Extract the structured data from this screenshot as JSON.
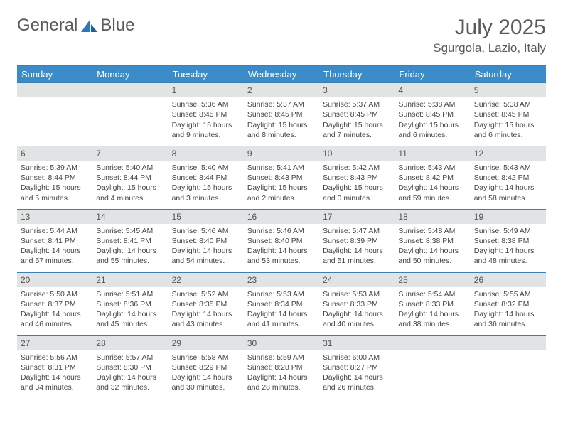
{
  "brand": {
    "part1": "General",
    "part2": "Blue"
  },
  "title": "July 2025",
  "location": "Sgurgola, Lazio, Italy",
  "day_headers": [
    "Sunday",
    "Monday",
    "Tuesday",
    "Wednesday",
    "Thursday",
    "Friday",
    "Saturday"
  ],
  "colors": {
    "header_bg": "#3b8bc9",
    "border": "#3a7fb5",
    "daynum_bg": "#e1e3e5",
    "logo_accent": "#2f77b7"
  },
  "weeks": [
    [
      {
        "num": "",
        "lines": []
      },
      {
        "num": "",
        "lines": []
      },
      {
        "num": "1",
        "lines": [
          "Sunrise: 5:36 AM",
          "Sunset: 8:45 PM",
          "Daylight: 15 hours",
          "and 9 minutes."
        ]
      },
      {
        "num": "2",
        "lines": [
          "Sunrise: 5:37 AM",
          "Sunset: 8:45 PM",
          "Daylight: 15 hours",
          "and 8 minutes."
        ]
      },
      {
        "num": "3",
        "lines": [
          "Sunrise: 5:37 AM",
          "Sunset: 8:45 PM",
          "Daylight: 15 hours",
          "and 7 minutes."
        ]
      },
      {
        "num": "4",
        "lines": [
          "Sunrise: 5:38 AM",
          "Sunset: 8:45 PM",
          "Daylight: 15 hours",
          "and 6 minutes."
        ]
      },
      {
        "num": "5",
        "lines": [
          "Sunrise: 5:38 AM",
          "Sunset: 8:45 PM",
          "Daylight: 15 hours",
          "and 6 minutes."
        ]
      }
    ],
    [
      {
        "num": "6",
        "lines": [
          "Sunrise: 5:39 AM",
          "Sunset: 8:44 PM",
          "Daylight: 15 hours",
          "and 5 minutes."
        ]
      },
      {
        "num": "7",
        "lines": [
          "Sunrise: 5:40 AM",
          "Sunset: 8:44 PM",
          "Daylight: 15 hours",
          "and 4 minutes."
        ]
      },
      {
        "num": "8",
        "lines": [
          "Sunrise: 5:40 AM",
          "Sunset: 8:44 PM",
          "Daylight: 15 hours",
          "and 3 minutes."
        ]
      },
      {
        "num": "9",
        "lines": [
          "Sunrise: 5:41 AM",
          "Sunset: 8:43 PM",
          "Daylight: 15 hours",
          "and 2 minutes."
        ]
      },
      {
        "num": "10",
        "lines": [
          "Sunrise: 5:42 AM",
          "Sunset: 8:43 PM",
          "Daylight: 15 hours",
          "and 0 minutes."
        ]
      },
      {
        "num": "11",
        "lines": [
          "Sunrise: 5:43 AM",
          "Sunset: 8:42 PM",
          "Daylight: 14 hours",
          "and 59 minutes."
        ]
      },
      {
        "num": "12",
        "lines": [
          "Sunrise: 5:43 AM",
          "Sunset: 8:42 PM",
          "Daylight: 14 hours",
          "and 58 minutes."
        ]
      }
    ],
    [
      {
        "num": "13",
        "lines": [
          "Sunrise: 5:44 AM",
          "Sunset: 8:41 PM",
          "Daylight: 14 hours",
          "and 57 minutes."
        ]
      },
      {
        "num": "14",
        "lines": [
          "Sunrise: 5:45 AM",
          "Sunset: 8:41 PM",
          "Daylight: 14 hours",
          "and 55 minutes."
        ]
      },
      {
        "num": "15",
        "lines": [
          "Sunrise: 5:46 AM",
          "Sunset: 8:40 PM",
          "Daylight: 14 hours",
          "and 54 minutes."
        ]
      },
      {
        "num": "16",
        "lines": [
          "Sunrise: 5:46 AM",
          "Sunset: 8:40 PM",
          "Daylight: 14 hours",
          "and 53 minutes."
        ]
      },
      {
        "num": "17",
        "lines": [
          "Sunrise: 5:47 AM",
          "Sunset: 8:39 PM",
          "Daylight: 14 hours",
          "and 51 minutes."
        ]
      },
      {
        "num": "18",
        "lines": [
          "Sunrise: 5:48 AM",
          "Sunset: 8:38 PM",
          "Daylight: 14 hours",
          "and 50 minutes."
        ]
      },
      {
        "num": "19",
        "lines": [
          "Sunrise: 5:49 AM",
          "Sunset: 8:38 PM",
          "Daylight: 14 hours",
          "and 48 minutes."
        ]
      }
    ],
    [
      {
        "num": "20",
        "lines": [
          "Sunrise: 5:50 AM",
          "Sunset: 8:37 PM",
          "Daylight: 14 hours",
          "and 46 minutes."
        ]
      },
      {
        "num": "21",
        "lines": [
          "Sunrise: 5:51 AM",
          "Sunset: 8:36 PM",
          "Daylight: 14 hours",
          "and 45 minutes."
        ]
      },
      {
        "num": "22",
        "lines": [
          "Sunrise: 5:52 AM",
          "Sunset: 8:35 PM",
          "Daylight: 14 hours",
          "and 43 minutes."
        ]
      },
      {
        "num": "23",
        "lines": [
          "Sunrise: 5:53 AM",
          "Sunset: 8:34 PM",
          "Daylight: 14 hours",
          "and 41 minutes."
        ]
      },
      {
        "num": "24",
        "lines": [
          "Sunrise: 5:53 AM",
          "Sunset: 8:33 PM",
          "Daylight: 14 hours",
          "and 40 minutes."
        ]
      },
      {
        "num": "25",
        "lines": [
          "Sunrise: 5:54 AM",
          "Sunset: 8:33 PM",
          "Daylight: 14 hours",
          "and 38 minutes."
        ]
      },
      {
        "num": "26",
        "lines": [
          "Sunrise: 5:55 AM",
          "Sunset: 8:32 PM",
          "Daylight: 14 hours",
          "and 36 minutes."
        ]
      }
    ],
    [
      {
        "num": "27",
        "lines": [
          "Sunrise: 5:56 AM",
          "Sunset: 8:31 PM",
          "Daylight: 14 hours",
          "and 34 minutes."
        ]
      },
      {
        "num": "28",
        "lines": [
          "Sunrise: 5:57 AM",
          "Sunset: 8:30 PM",
          "Daylight: 14 hours",
          "and 32 minutes."
        ]
      },
      {
        "num": "29",
        "lines": [
          "Sunrise: 5:58 AM",
          "Sunset: 8:29 PM",
          "Daylight: 14 hours",
          "and 30 minutes."
        ]
      },
      {
        "num": "30",
        "lines": [
          "Sunrise: 5:59 AM",
          "Sunset: 8:28 PM",
          "Daylight: 14 hours",
          "and 28 minutes."
        ]
      },
      {
        "num": "31",
        "lines": [
          "Sunrise: 6:00 AM",
          "Sunset: 8:27 PM",
          "Daylight: 14 hours",
          "and 26 minutes."
        ]
      },
      {
        "num": "",
        "lines": []
      },
      {
        "num": "",
        "lines": []
      }
    ]
  ]
}
